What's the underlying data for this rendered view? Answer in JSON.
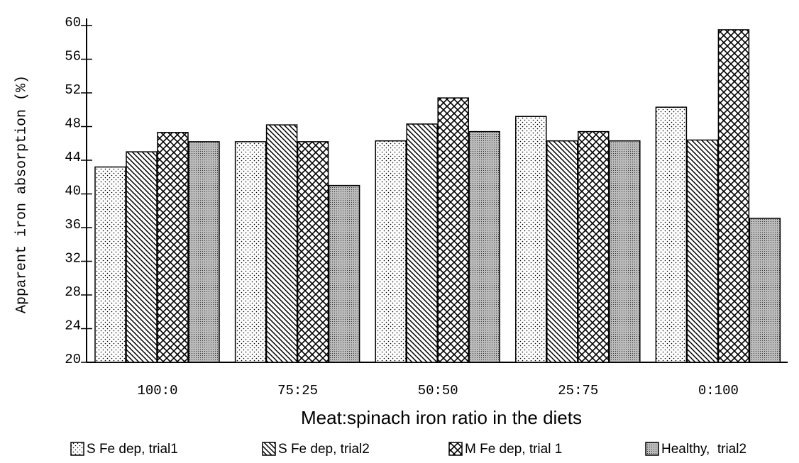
{
  "chart_data": {
    "type": "bar",
    "y_label": "Apparent iron absorption (%)",
    "x_label": "Meat:spinach iron ratio in the diets",
    "categories": [
      "100:0",
      "75:25",
      "50:50",
      "25:75",
      "0:100"
    ],
    "series": [
      {
        "name": "S Fe dep, trial1",
        "pattern": "dots",
        "values": [
          43.2,
          46.2,
          46.3,
          49.2,
          50.3
        ]
      },
      {
        "name": "S Fe dep, trial2",
        "pattern": "diagonal",
        "values": [
          45,
          48.2,
          48.3,
          46.3,
          46.4
        ]
      },
      {
        "name": "M Fe dep, trial 1",
        "pattern": "crosshatch",
        "values": [
          47.3,
          46.2,
          51.4,
          47.4,
          59.5
        ]
      },
      {
        "name": "Healthy,  trial2",
        "pattern": "fine-dots",
        "values": [
          46.2,
          41,
          47.4,
          46.3,
          37.1
        ]
      }
    ],
    "ylim": [
      20,
      60
    ],
    "yticks": [
      20,
      24,
      28,
      32,
      36,
      40,
      44,
      48,
      52,
      56,
      60
    ]
  }
}
